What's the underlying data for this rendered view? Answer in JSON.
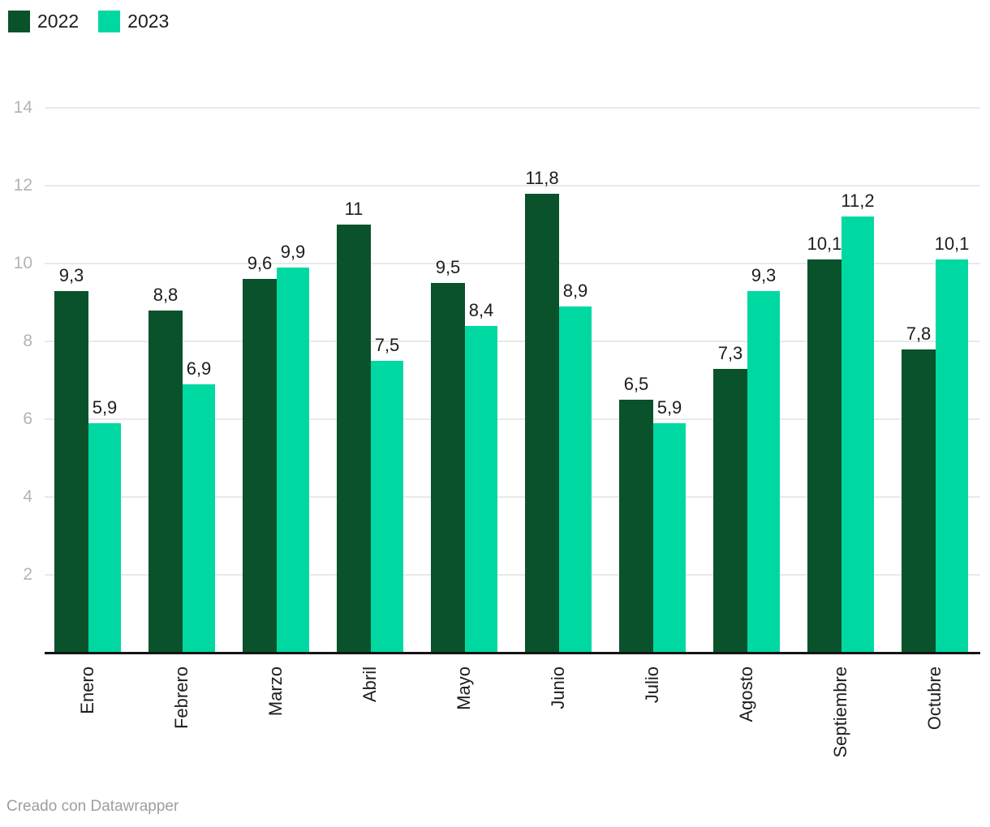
{
  "chart_data": {
    "type": "bar",
    "title": "",
    "categories": [
      "Enero",
      "Febrero",
      "Marzo",
      "Abril",
      "Mayo",
      "Junio",
      "Julio",
      "Agosto",
      "Septiembre",
      "Octubre"
    ],
    "series": [
      {
        "name": "2022",
        "color": "#09522b",
        "values": [
          9.3,
          8.8,
          9.6,
          11,
          9.5,
          11.8,
          6.5,
          7.3,
          10.1,
          7.8
        ],
        "labels": [
          "9,3",
          "8,8",
          "9,6",
          "11",
          "9,5",
          "11,8",
          "6,5",
          "7,3",
          "10,1",
          "7,8"
        ]
      },
      {
        "name": "2023",
        "color": "#00d8a2",
        "values": [
          5.9,
          6.9,
          9.9,
          7.5,
          8.4,
          8.9,
          5.9,
          9.3,
          11.2,
          10.1
        ],
        "labels": [
          "5,9",
          "6,9",
          "9,9",
          "7,5",
          "8,4",
          "8,9",
          "5,9",
          "9,3",
          "11,2",
          "10,1"
        ]
      }
    ],
    "ylim": [
      0,
      14
    ],
    "yticks": [
      2,
      4,
      6,
      8,
      10,
      12,
      14
    ],
    "grid": "horizontal",
    "legend_position": "top-left",
    "value_labels_shown": true,
    "grid_color": "#e9e9e9",
    "axis_line_color": "#141414",
    "tick_label_color": "#b3b3b3",
    "text_color": "#1d1d1d"
  },
  "footer": {
    "credit": "Creado con Datawrapper"
  }
}
